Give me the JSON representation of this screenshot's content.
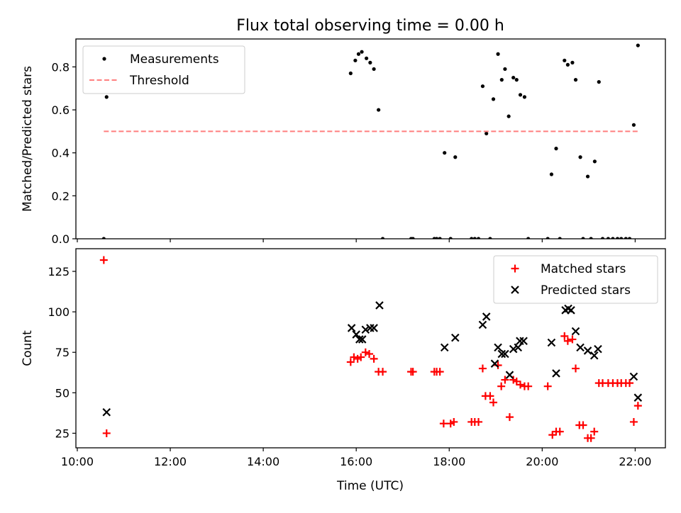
{
  "chart_data": {
    "type": "scatter",
    "title": "Flux total observing time = 0.00 h",
    "xlabel": "Time (UTC)",
    "x_ticks": [
      {
        "h": 10,
        "label": "10:00"
      },
      {
        "h": 12,
        "label": "12:00"
      },
      {
        "h": 14,
        "label": "14:00"
      },
      {
        "h": 16,
        "label": "16:00"
      },
      {
        "h": 18,
        "label": "18:00"
      },
      {
        "h": 20,
        "label": "20:00"
      },
      {
        "h": 22,
        "label": "22:00"
      }
    ],
    "xlim": [
      9.97,
      22.65
    ],
    "panels": [
      {
        "ylabel": "Matched/Predicted stars",
        "ylim": [
          0,
          0.93
        ],
        "y_ticks": [
          {
            "v": 0.0,
            "label": "0.0"
          },
          {
            "v": 0.2,
            "label": "0.2"
          },
          {
            "v": 0.4,
            "label": "0.4"
          },
          {
            "v": 0.6,
            "label": "0.6"
          },
          {
            "v": 0.8,
            "label": "0.8"
          }
        ],
        "legend_position": "top-left",
        "series": [
          {
            "name": "Measurements",
            "marker": "dot",
            "color": "#000000",
            "points": [
              [
                10.57,
                0.0
              ],
              [
                10.63,
                0.66
              ],
              [
                15.88,
                0.77
              ],
              [
                15.98,
                0.83
              ],
              [
                16.05,
                0.86
              ],
              [
                16.12,
                0.87
              ],
              [
                16.22,
                0.84
              ],
              [
                16.3,
                0.82
              ],
              [
                16.38,
                0.79
              ],
              [
                16.48,
                0.6
              ],
              [
                16.57,
                0.0
              ],
              [
                17.18,
                0.0
              ],
              [
                17.22,
                0.0
              ],
              [
                17.68,
                0.0
              ],
              [
                17.73,
                0.0
              ],
              [
                17.8,
                0.0
              ],
              [
                17.9,
                0.4
              ],
              [
                18.03,
                0.0
              ],
              [
                18.13,
                0.38
              ],
              [
                18.48,
                0.0
              ],
              [
                18.55,
                0.0
              ],
              [
                18.63,
                0.0
              ],
              [
                18.72,
                0.71
              ],
              [
                18.8,
                0.49
              ],
              [
                18.88,
                0.0
              ],
              [
                18.95,
                0.65
              ],
              [
                19.05,
                0.86
              ],
              [
                19.13,
                0.74
              ],
              [
                19.2,
                0.79
              ],
              [
                19.28,
                0.57
              ],
              [
                19.38,
                0.75
              ],
              [
                19.45,
                0.74
              ],
              [
                19.53,
                0.67
              ],
              [
                19.62,
                0.66
              ],
              [
                19.7,
                0.0
              ],
              [
                20.12,
                0.0
              ],
              [
                20.2,
                0.3
              ],
              [
                20.3,
                0.42
              ],
              [
                20.38,
                0.0
              ],
              [
                20.48,
                0.83
              ],
              [
                20.55,
                0.81
              ],
              [
                20.65,
                0.82
              ],
              [
                20.72,
                0.74
              ],
              [
                20.82,
                0.38
              ],
              [
                20.88,
                0.0
              ],
              [
                20.98,
                0.29
              ],
              [
                21.05,
                0.0
              ],
              [
                21.13,
                0.36
              ],
              [
                21.22,
                0.73
              ],
              [
                21.3,
                0.0
              ],
              [
                21.42,
                0.0
              ],
              [
                21.52,
                0.0
              ],
              [
                21.62,
                0.0
              ],
              [
                21.7,
                0.0
              ],
              [
                21.8,
                0.0
              ],
              [
                21.88,
                0.0
              ],
              [
                21.97,
                0.53
              ],
              [
                22.06,
                0.9
              ]
            ]
          },
          {
            "name": "Threshold",
            "marker": "dashed-line",
            "color": "#ff7f7f",
            "points": [
              [
                10.57,
                0.5
              ],
              [
                22.06,
                0.5
              ]
            ]
          }
        ]
      },
      {
        "ylabel": "Count",
        "ylim": [
          16,
          139
        ],
        "y_ticks": [
          {
            "v": 25,
            "label": "25"
          },
          {
            "v": 50,
            "label": "50"
          },
          {
            "v": 75,
            "label": "75"
          },
          {
            "v": 100,
            "label": "100"
          },
          {
            "v": 125,
            "label": "125"
          }
        ],
        "legend_position": "top-right",
        "series": [
          {
            "name": "Matched stars",
            "marker": "plus",
            "color": "#ff0000",
            "points": [
              [
                10.57,
                132
              ],
              [
                10.63,
                25
              ],
              [
                15.88,
                69
              ],
              [
                15.95,
                72
              ],
              [
                16.03,
                71
              ],
              [
                16.1,
                72
              ],
              [
                16.2,
                75
              ],
              [
                16.28,
                74
              ],
              [
                16.38,
                71
              ],
              [
                16.48,
                63
              ],
              [
                16.57,
                63
              ],
              [
                17.18,
                63
              ],
              [
                17.22,
                63
              ],
              [
                17.68,
                63
              ],
              [
                17.73,
                63
              ],
              [
                17.8,
                63
              ],
              [
                17.88,
                31
              ],
              [
                18.03,
                31
              ],
              [
                18.1,
                32
              ],
              [
                18.48,
                32
              ],
              [
                18.55,
                32
              ],
              [
                18.63,
                32
              ],
              [
                18.72,
                65
              ],
              [
                18.78,
                48
              ],
              [
                18.88,
                48
              ],
              [
                18.95,
                44
              ],
              [
                19.05,
                67
              ],
              [
                19.12,
                54
              ],
              [
                19.2,
                58
              ],
              [
                19.3,
                35
              ],
              [
                19.38,
                58
              ],
              [
                19.45,
                57
              ],
              [
                19.53,
                55
              ],
              [
                19.62,
                54
              ],
              [
                19.7,
                54
              ],
              [
                20.12,
                54
              ],
              [
                20.22,
                24
              ],
              [
                20.3,
                26
              ],
              [
                20.38,
                26
              ],
              [
                20.48,
                85
              ],
              [
                20.55,
                82
              ],
              [
                20.65,
                83
              ],
              [
                20.72,
                65
              ],
              [
                20.8,
                30
              ],
              [
                20.88,
                30
              ],
              [
                20.98,
                22
              ],
              [
                21.05,
                22
              ],
              [
                21.12,
                26
              ],
              [
                21.22,
                56
              ],
              [
                21.3,
                56
              ],
              [
                21.42,
                56
              ],
              [
                21.52,
                56
              ],
              [
                21.62,
                56
              ],
              [
                21.7,
                56
              ],
              [
                21.8,
                56
              ],
              [
                21.88,
                56
              ],
              [
                21.97,
                32
              ],
              [
                22.06,
                42
              ]
            ]
          },
          {
            "name": "Predicted stars",
            "marker": "x",
            "color": "#000000",
            "points": [
              [
                10.63,
                38
              ],
              [
                15.9,
                90
              ],
              [
                16.0,
                86
              ],
              [
                16.07,
                83
              ],
              [
                16.13,
                83
              ],
              [
                16.2,
                89
              ],
              [
                16.3,
                90
              ],
              [
                16.38,
                90
              ],
              [
                16.5,
                104
              ],
              [
                17.9,
                78
              ],
              [
                18.13,
                84
              ],
              [
                18.72,
                92
              ],
              [
                18.8,
                97
              ],
              [
                18.98,
                68
              ],
              [
                19.05,
                78
              ],
              [
                19.13,
                74
              ],
              [
                19.2,
                74
              ],
              [
                19.3,
                61
              ],
              [
                19.38,
                77
              ],
              [
                19.48,
                78
              ],
              [
                19.52,
                82
              ],
              [
                19.6,
                82
              ],
              [
                20.2,
                81
              ],
              [
                20.3,
                62
              ],
              [
                20.5,
                101
              ],
              [
                20.56,
                102
              ],
              [
                20.62,
                101
              ],
              [
                20.72,
                88
              ],
              [
                20.82,
                78
              ],
              [
                20.98,
                76
              ],
              [
                21.12,
                73
              ],
              [
                21.2,
                77
              ],
              [
                21.97,
                60
              ],
              [
                22.06,
                47
              ]
            ]
          }
        ]
      }
    ]
  }
}
